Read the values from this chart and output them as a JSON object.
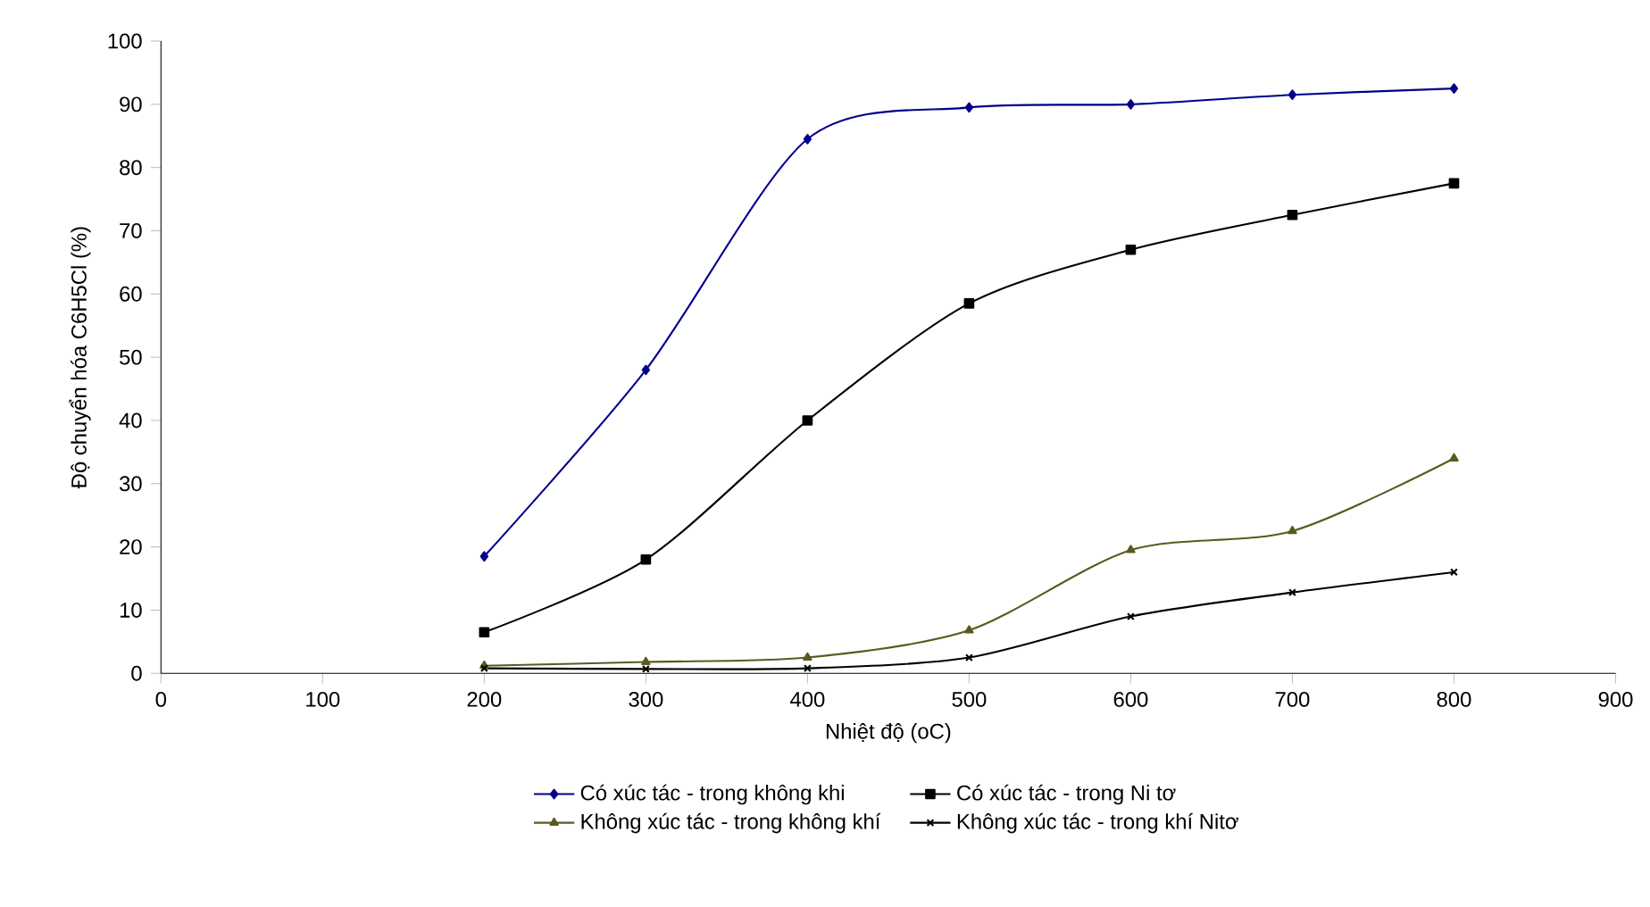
{
  "chart_data": {
    "type": "line",
    "xlabel": "Nhiệt độ (oC)",
    "ylabel": "Độ chuyển hóa C6H5Cl (%)",
    "x": [
      200,
      300,
      400,
      500,
      600,
      700,
      800
    ],
    "xlim": [
      0,
      900
    ],
    "xticks": [
      0,
      100,
      200,
      300,
      400,
      500,
      600,
      700,
      800,
      900
    ],
    "ylim": [
      0,
      100
    ],
    "yticks": [
      0,
      10,
      20,
      30,
      40,
      50,
      60,
      70,
      80,
      90,
      100
    ],
    "grid": false,
    "legend": "bottom",
    "line_style": "solid",
    "series": [
      {
        "name": "Có xúc tác - trong không khi",
        "color": "#00008b",
        "marker": "diamond",
        "values": [
          18.5,
          48,
          84.5,
          89.5,
          90,
          91.5,
          92.5
        ]
      },
      {
        "name": "Có xúc tác - trong Ni tơ",
        "color": "#000000",
        "marker": "square",
        "values": [
          6.5,
          18,
          40,
          58.5,
          67,
          72.5,
          77.5
        ]
      },
      {
        "name": "Không xúc tác - trong không khí",
        "color": "#5a5a20",
        "marker": "triangle",
        "values": [
          1.2,
          1.8,
          2.5,
          6.8,
          19.5,
          22.5,
          34
        ]
      },
      {
        "name": "Không xúc tác - trong khí Nitơ",
        "color": "#000000",
        "marker": "cross",
        "values": [
          0.8,
          0.7,
          0.8,
          2.5,
          9,
          12.8,
          16
        ]
      }
    ]
  }
}
